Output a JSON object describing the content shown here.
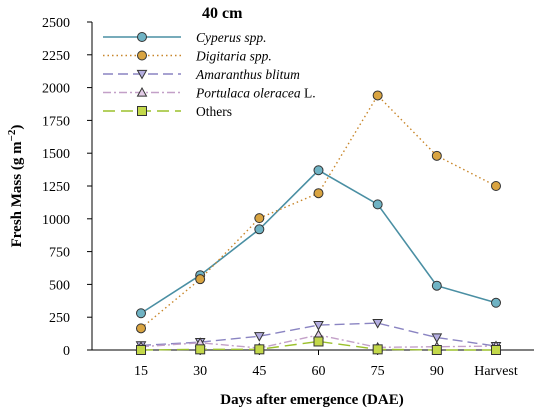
{
  "chart_data": {
    "type": "line",
    "title": "40 cm",
    "xlabel": "Days after emergence (DAE)",
    "ylabel_main": "Fresh Mass (g m",
    "ylabel_sup": "−2",
    "ylabel_close": ")",
    "categories": [
      "15",
      "30",
      "45",
      "60",
      "75",
      "90",
      "Harvest"
    ],
    "ylim": [
      0,
      2500
    ],
    "yticks": [
      "0",
      "250",
      "500",
      "750",
      "1000",
      "1250",
      "1500",
      "1750",
      "2000",
      "2250",
      "2500"
    ],
    "legend_position": "top-left",
    "series": [
      {
        "name_italic": "Cyperus spp.",
        "name_plain": "",
        "color": "#4a8fa3",
        "marker": "circle",
        "marker_fill": "#6fb3c4",
        "dash": "none",
        "values": [
          280,
          570,
          920,
          1370,
          1110,
          490,
          360
        ]
      },
      {
        "name_italic": "Digitaria spp.",
        "name_plain": "",
        "color": "#c8862a",
        "marker": "circle",
        "marker_fill": "#d9a441",
        "dash": "dot",
        "values": [
          165,
          540,
          1005,
          1195,
          1940,
          1480,
          1250
        ]
      },
      {
        "name_italic": "Amaranthus blitum",
        "name_plain": "",
        "color": "#8a84c2",
        "marker": "triangle-down",
        "marker_fill": "#b4aee0",
        "dash": "dash",
        "values": [
          35,
          60,
          105,
          190,
          205,
          95,
          30
        ]
      },
      {
        "name_italic": "Portulaca oleracea",
        "name_plain": " L.",
        "color": "#c3a0c8",
        "marker": "triangle-up",
        "marker_fill": "#e2cce6",
        "dash": "dashdot",
        "values": [
          25,
          55,
          15,
          115,
          20,
          25,
          30
        ]
      },
      {
        "name_italic": "",
        "name_plain": "Others",
        "color": "#9bc02c",
        "marker": "square",
        "marker_fill": "#c3d84a",
        "dash": "longdash",
        "values": [
          0,
          5,
          5,
          65,
          5,
          0,
          0
        ]
      }
    ]
  }
}
